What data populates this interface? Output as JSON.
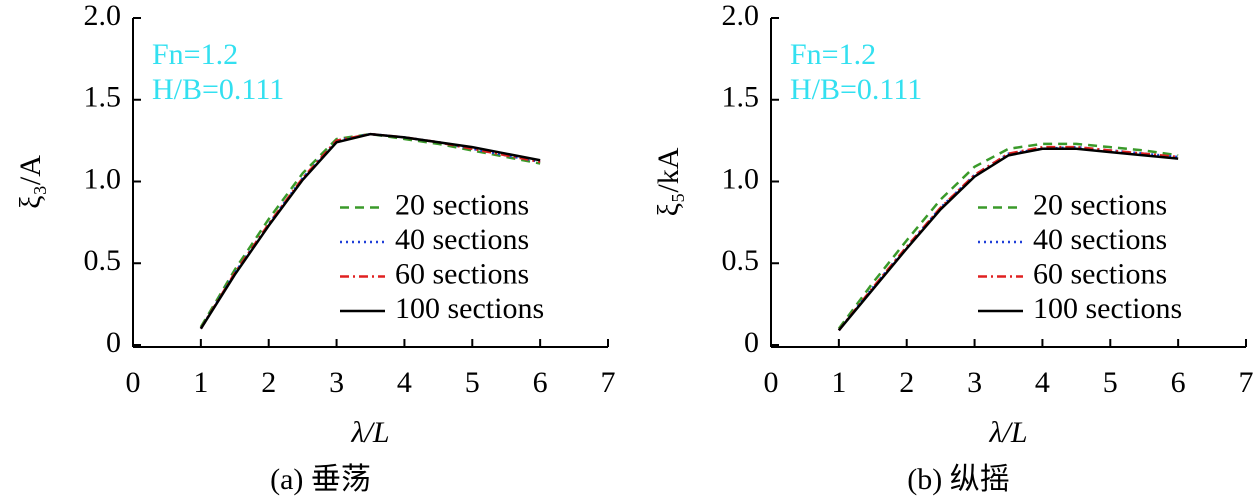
{
  "chart_data": [
    {
      "type": "line",
      "caption": "(a) 垂荡",
      "xlabel": "λ/L",
      "ylabel": "ξ₃/A",
      "annotations": [
        "Fn=1.2",
        "H/B=0.111"
      ],
      "annotation_color": "#33e0f0",
      "xlim": [
        0,
        7
      ],
      "ylim": [
        0,
        2
      ],
      "xticks": [
        0,
        1,
        2,
        3,
        4,
        5,
        6,
        7
      ],
      "yticks": [
        0,
        0.5,
        {
          "value": 1,
          "label": "1.0"
        },
        1.5,
        {
          "value": 2,
          "label": "2.0"
        }
      ],
      "legend": "lower right",
      "x": [
        1,
        1.5,
        2,
        2.5,
        3,
        3.5,
        4,
        4.5,
        5,
        5.5,
        6
      ],
      "series": [
        {
          "name": "20 sections",
          "color": "#3a9a2a",
          "linestyle": "dashed",
          "values": [
            0.11,
            0.46,
            0.77,
            1.05,
            1.26,
            1.29,
            1.26,
            1.23,
            1.19,
            1.15,
            1.11
          ]
        },
        {
          "name": "40 sections",
          "color": "#1f3fd8",
          "linestyle": "dotted",
          "values": [
            0.1,
            0.44,
            0.74,
            1.02,
            1.25,
            1.29,
            1.27,
            1.24,
            1.2,
            1.16,
            1.12
          ]
        },
        {
          "name": "60 sections",
          "color": "#e02020",
          "linestyle": "dashdot",
          "values": [
            0.1,
            0.44,
            0.74,
            1.02,
            1.25,
            1.29,
            1.27,
            1.24,
            1.2,
            1.16,
            1.12
          ]
        },
        {
          "name": "100 sections",
          "color": "#000000",
          "linestyle": "solid",
          "values": [
            0.1,
            0.43,
            0.73,
            1.01,
            1.24,
            1.29,
            1.27,
            1.24,
            1.21,
            1.17,
            1.13
          ]
        }
      ]
    },
    {
      "type": "line",
      "caption": "(b) 纵摇",
      "xlabel": "λ/L",
      "ylabel": "ξ₅/kA",
      "annotations": [
        "Fn=1.2",
        "H/B=0.111"
      ],
      "annotation_color": "#33e0f0",
      "xlim": [
        0,
        7
      ],
      "ylim": [
        0,
        2
      ],
      "xticks": [
        0,
        1,
        2,
        3,
        4,
        5,
        6,
        7
      ],
      "yticks": [
        0,
        0.5,
        {
          "value": 1,
          "label": "1.0"
        },
        1.5,
        {
          "value": 2,
          "label": "2.0"
        }
      ],
      "legend": "lower right",
      "x": [
        1,
        1.5,
        2,
        2.5,
        3,
        3.5,
        4,
        4.5,
        5,
        5.5,
        6
      ],
      "series": [
        {
          "name": "20 sections",
          "color": "#3a9a2a",
          "linestyle": "dashed",
          "values": [
            0.1,
            0.38,
            0.64,
            0.89,
            1.09,
            1.2,
            1.23,
            1.23,
            1.21,
            1.19,
            1.16
          ]
        },
        {
          "name": "40 sections",
          "color": "#1f3fd8",
          "linestyle": "dotted",
          "values": [
            0.09,
            0.35,
            0.6,
            0.84,
            1.04,
            1.17,
            1.2,
            1.21,
            1.19,
            1.17,
            1.15
          ]
        },
        {
          "name": "60 sections",
          "color": "#e02020",
          "linestyle": "dashdot",
          "values": [
            0.09,
            0.35,
            0.6,
            0.84,
            1.04,
            1.17,
            1.21,
            1.21,
            1.19,
            1.17,
            1.15
          ]
        },
        {
          "name": "100 sections",
          "color": "#000000",
          "linestyle": "solid",
          "values": [
            0.09,
            0.34,
            0.59,
            0.83,
            1.03,
            1.16,
            1.2,
            1.2,
            1.18,
            1.16,
            1.14
          ]
        }
      ]
    }
  ]
}
